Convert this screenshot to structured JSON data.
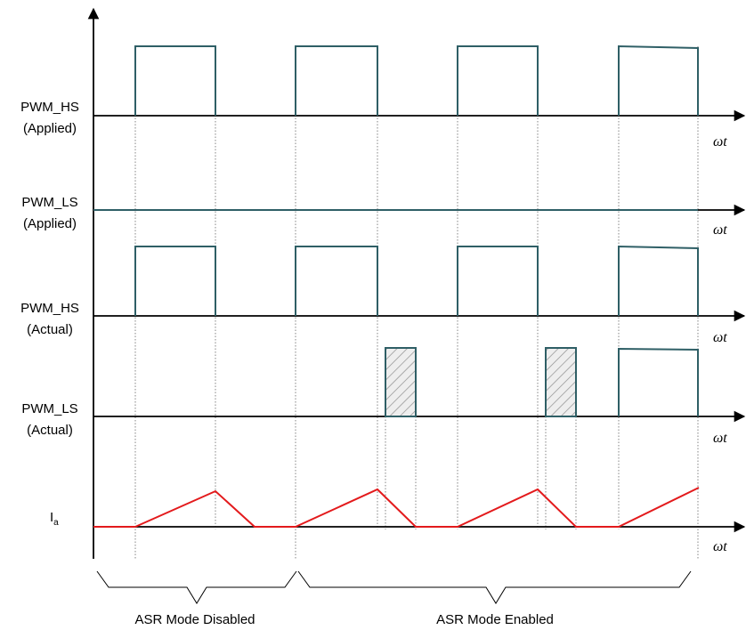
{
  "signals": [
    {
      "line1": "PWM_HS",
      "line2": "(Applied)"
    },
    {
      "line1": "PWM_LS",
      "line2": "(Applied)"
    },
    {
      "line1": "PWM_HS",
      "line2": "(Actual)"
    },
    {
      "line1": "PWM_LS",
      "line2": "(Actual)"
    }
  ],
  "current_label": {
    "main": "I",
    "sub": "a"
  },
  "axis_label": "ωt",
  "modes": {
    "disabled": "ASR Mode Disabled",
    "enabled": "ASR Mode Enabled"
  },
  "colors": {
    "pulse": "#2f5f66",
    "current": "#e31a1c",
    "hatch": "#9a9a9a",
    "hatch_fill": "#e8e8e8",
    "axis": "#000000",
    "guide": "#555555"
  }
}
